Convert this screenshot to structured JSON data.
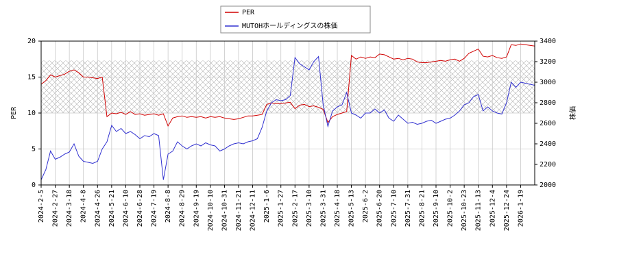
{
  "chart_data": {
    "type": "line",
    "categories": [
      "2024-2-5",
      null,
      null,
      "2024-2-27",
      null,
      null,
      "2024-3-18",
      null,
      null,
      "2024-4-8",
      null,
      null,
      "2024-4-26",
      null,
      null,
      "2024-5-21",
      null,
      null,
      "2024-6-10",
      null,
      null,
      "2024-6-28",
      null,
      null,
      "2024-7-19",
      null,
      null,
      "2024-8-8",
      null,
      null,
      "2024-8-29",
      null,
      null,
      "2024-9-19",
      null,
      null,
      "2024-10-10",
      null,
      null,
      "2024-10-31",
      null,
      null,
      "2024-11-21",
      null,
      null,
      "2024-12-11",
      null,
      null,
      "2025-1-6",
      null,
      null,
      "2025-1-27",
      null,
      null,
      "2025-2-17",
      null,
      null,
      "2025-3-10",
      null,
      null,
      "2025-3-31",
      null,
      null,
      "2025-4-18",
      null,
      null,
      "2025-5-13",
      null,
      null,
      "2025-6-2",
      null,
      null,
      "2025-6-20",
      null,
      null,
      "2025-7-10",
      null,
      null,
      "2025-7-31",
      null,
      null,
      "2025-8-21",
      null,
      null,
      "2025-9-10",
      null,
      null,
      "2025-10-2",
      null,
      null,
      "2025-10-23",
      null,
      null,
      "2025-11-13",
      null,
      null,
      "2025-12-4",
      null,
      null,
      "2025-12-24",
      null,
      null,
      "2026-1-19",
      null,
      null,
      null
    ],
    "series": [
      {
        "name": "PER",
        "color": "#d00000",
        "axis": "y",
        "values": [
          14,
          14.5,
          15.3,
          15,
          15.2,
          15.4,
          15.8,
          16,
          15.6,
          15,
          15,
          14.9,
          14.8,
          15,
          9.5,
          10,
          9.9,
          10.1,
          9.8,
          10.2,
          9.8,
          9.9,
          9.7,
          9.8,
          9.9,
          9.7,
          9.9,
          8.2,
          9.3,
          9.5,
          9.6,
          9.4,
          9.5,
          9.4,
          9.5,
          9.3,
          9.5,
          9.4,
          9.5,
          9.3,
          9.2,
          9.1,
          9.2,
          9.4,
          9.6,
          9.6,
          9.7,
          9.8,
          11.2,
          11.4,
          11.3,
          11.3,
          11.4,
          11.5,
          10.6,
          11.1,
          11.2,
          10.9,
          11,
          10.8,
          10.5,
          8.7,
          9.5,
          9.8,
          10,
          10.2,
          18,
          17.5,
          17.8,
          17.6,
          17.8,
          17.7,
          18.2,
          18.1,
          17.8,
          17.5,
          17.6,
          17.4,
          17.6,
          17.5,
          17.1,
          17,
          17,
          17.1,
          17.2,
          17.3,
          17.2,
          17.4,
          17.5,
          17.2,
          17.6,
          18.3,
          18.6,
          18.9,
          17.9,
          17.8,
          18,
          17.7,
          17.6,
          17.8,
          19.5,
          19.4,
          19.6,
          19.5,
          19.4,
          19.3
        ]
      },
      {
        "name": "MUTOHホールディングスの株価",
        "color": "#3030d0",
        "axis": "y2",
        "values": [
          2050,
          2150,
          2330,
          2250,
          2270,
          2300,
          2320,
          2400,
          2280,
          2230,
          2220,
          2210,
          2230,
          2350,
          2420,
          2580,
          2520,
          2550,
          2500,
          2520,
          2490,
          2450,
          2480,
          2470,
          2500,
          2480,
          2050,
          2300,
          2330,
          2420,
          2380,
          2350,
          2380,
          2400,
          2380,
          2410,
          2390,
          2380,
          2330,
          2350,
          2380,
          2400,
          2410,
          2400,
          2420,
          2430,
          2450,
          2560,
          2720,
          2800,
          2830,
          2820,
          2830,
          2870,
          3240,
          3180,
          3150,
          3120,
          3200,
          3250,
          2780,
          2570,
          2720,
          2760,
          2780,
          2900,
          2700,
          2680,
          2650,
          2700,
          2700,
          2740,
          2700,
          2730,
          2650,
          2620,
          2680,
          2640,
          2600,
          2610,
          2590,
          2600,
          2620,
          2630,
          2600,
          2620,
          2640,
          2650,
          2680,
          2720,
          2780,
          2800,
          2860,
          2880,
          2720,
          2760,
          2720,
          2700,
          2690,
          2800,
          3000,
          2950,
          3000,
          2990,
          2980,
          2970
        ]
      }
    ],
    "ylabel": "PER",
    "y2label": "株価",
    "ylim": [
      0,
      20
    ],
    "yticks": [
      0,
      5,
      10,
      15,
      20
    ],
    "y2lim": [
      2000,
      3400
    ],
    "y2ticks": [
      2000,
      2200,
      2400,
      2600,
      2800,
      3000,
      3200,
      3400
    ],
    "hatched_band": [
      10,
      17.3
    ],
    "grid": true,
    "legend": "top"
  }
}
